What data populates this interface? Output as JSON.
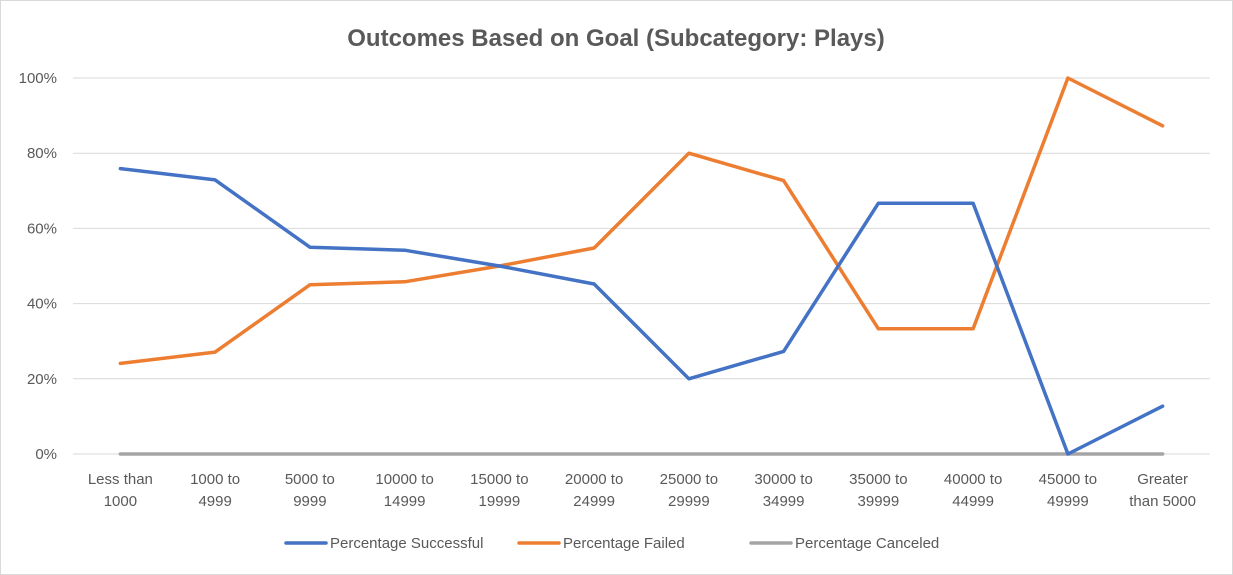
{
  "chart_data": {
    "type": "line",
    "title": "Outcomes Based on Goal (Subcategory: Plays)",
    "xlabel": "",
    "ylabel": "",
    "categories": [
      [
        "Less than",
        "1000"
      ],
      [
        "1000 to",
        "4999"
      ],
      [
        "5000 to",
        "9999"
      ],
      [
        "10000 to",
        "14999"
      ],
      [
        "15000 to",
        "19999"
      ],
      [
        "20000 to",
        "24999"
      ],
      [
        "25000 to",
        "29999"
      ],
      [
        "30000 to",
        "34999"
      ],
      [
        "35000 to",
        "39999"
      ],
      [
        "40000 to",
        "44999"
      ],
      [
        "45000 to",
        "49999"
      ],
      [
        "Greater",
        "than 5000"
      ]
    ],
    "ylim": [
      0,
      100
    ],
    "yticks": [
      0,
      20,
      40,
      60,
      80,
      100
    ],
    "ytick_labels": [
      "0%",
      "20%",
      "40%",
      "60%",
      "80%",
      "100%"
    ],
    "grid": true,
    "legend_position": "bottom",
    "series": [
      {
        "name": "Percentage Successful",
        "color": "#4472C4",
        "values": [
          75.9,
          72.9,
          55.0,
          54.2,
          50.0,
          45.2,
          20.0,
          27.3,
          66.7,
          66.7,
          0.0,
          12.7
        ]
      },
      {
        "name": "Percentage Failed",
        "color": "#ED7D31",
        "values": [
          24.1,
          27.1,
          45.0,
          45.8,
          50.0,
          54.8,
          80.0,
          72.7,
          33.3,
          33.3,
          100.0,
          87.3
        ]
      },
      {
        "name": "Percentage Canceled",
        "color": "#A5A5A5",
        "values": [
          0,
          0,
          0,
          0,
          0,
          0,
          0,
          0,
          0,
          0,
          0,
          0
        ]
      }
    ]
  }
}
